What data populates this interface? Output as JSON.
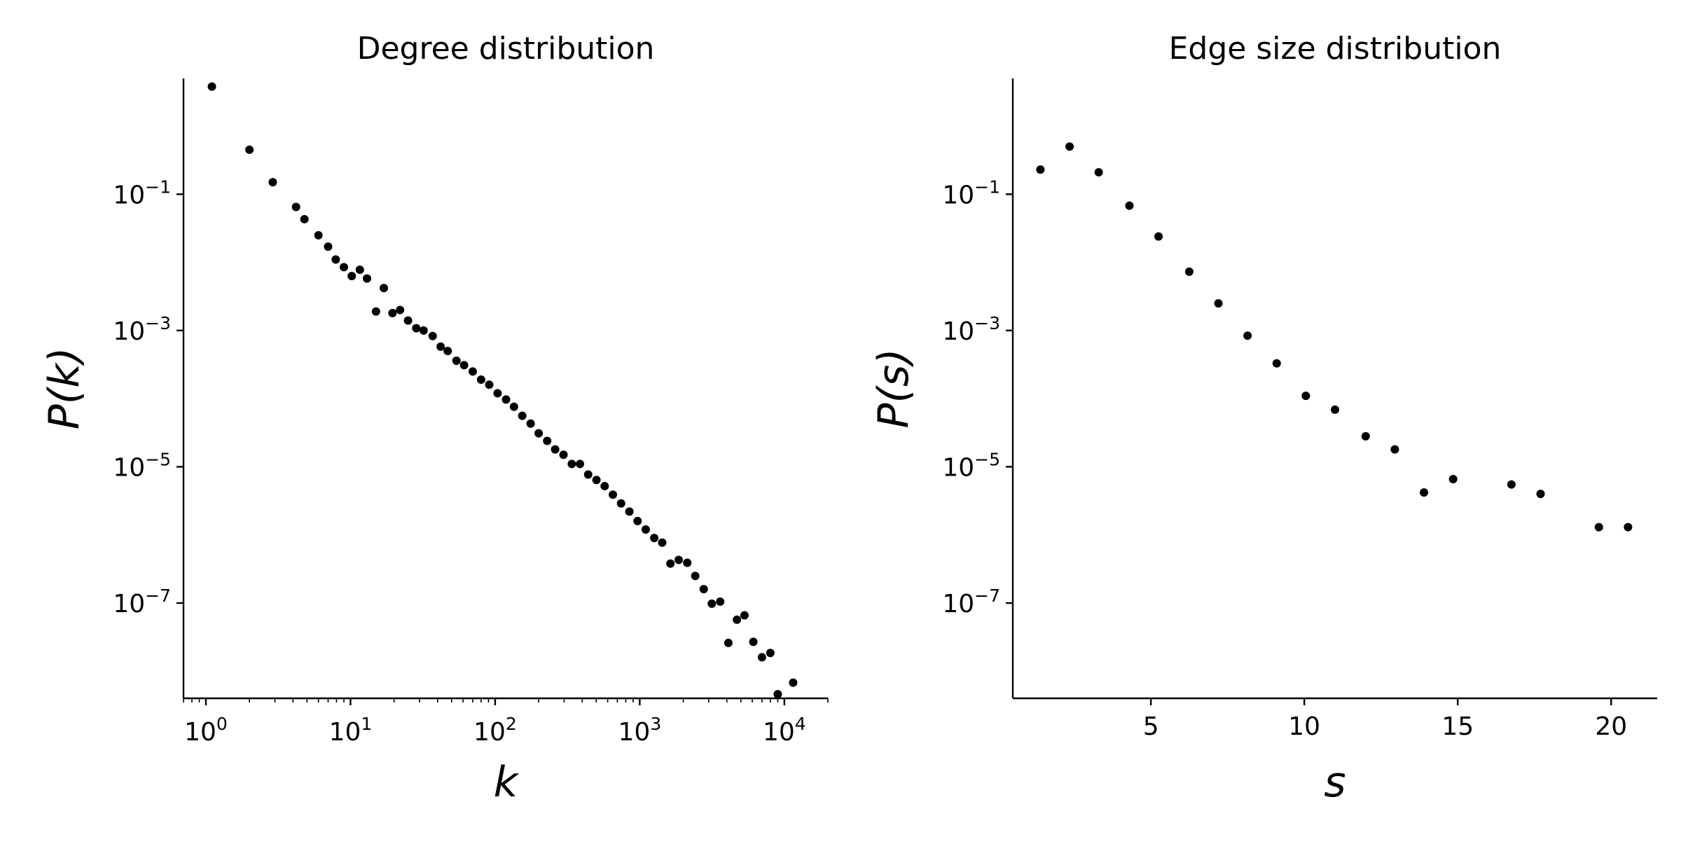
{
  "chart_data": [
    {
      "type": "scatter",
      "title": "Degree distribution",
      "xlabel": "k",
      "ylabel": "P(k)",
      "xscale": "log",
      "yscale": "log",
      "xlim": [
        0.7,
        20000
      ],
      "ylim": [
        4e-09,
        5
      ],
      "x_ticks": [
        {
          "base": "10",
          "exp": "0",
          "value": 1
        },
        {
          "base": "10",
          "exp": "1",
          "value": 10
        },
        {
          "base": "10",
          "exp": "2",
          "value": 100
        },
        {
          "base": "10",
          "exp": "3",
          "value": 1000
        },
        {
          "base": "10",
          "exp": "4",
          "value": 10000
        }
      ],
      "y_ticks": [
        {
          "base": "10",
          "exp": "−1",
          "value": 0.1
        },
        {
          "base": "10",
          "exp": "−3",
          "value": 0.001
        },
        {
          "base": "10",
          "exp": "−5",
          "value": 1e-05
        },
        {
          "base": "10",
          "exp": "−7",
          "value": 1e-07
        }
      ],
      "grid": false,
      "marker_color": "#000000",
      "series": [
        {
          "x": [
            1.1,
            2.0,
            2.9,
            4.2,
            4.8,
            6.0,
            7.0,
            7.9,
            9.0,
            10.2,
            11.6,
            13.0,
            15.0,
            17.0,
            19.5,
            22.0,
            25.0,
            28.5,
            32.0,
            37.0,
            42.0,
            47.0,
            54.0,
            61.0,
            70.0,
            80.0,
            91.0,
            104.0,
            119.0,
            135.0,
            154.0,
            176.0,
            200.0,
            229.0,
            260.0,
            297.0,
            339.0,
            386.0,
            440.0,
            502.0,
            572.0,
            652.0,
            743.0,
            848.0,
            966.0,
            1100.0,
            1260.0,
            1430.0,
            1630.0,
            1860.0,
            2130.0,
            2420.0,
            2770.0,
            3150.0,
            3600.0,
            4100.0,
            4700.0,
            5300.0,
            6100.0,
            7000.0,
            8000.0,
            9000.0,
            11500.0
          ],
          "y": [
            3.8,
            0.45,
            0.15,
            0.065,
            0.043,
            0.025,
            0.017,
            0.011,
            0.0085,
            0.0063,
            0.0078,
            0.0058,
            0.0019,
            0.0042,
            0.0018,
            0.002,
            0.0014,
            0.00108,
            0.001,
            0.00083,
            0.00058,
            0.0005,
            0.00036,
            0.00031,
            0.00025,
            0.00019,
            0.00016,
            0.00012,
            9.7e-05,
            7.6e-05,
            5.6e-05,
            4.3e-05,
            3.1e-05,
            2.4e-05,
            1.8e-05,
            1.5e-05,
            1.1e-05,
            1.1e-05,
            7.7e-06,
            6.4e-06,
            5.2e-06,
            3.9e-06,
            2.9e-06,
            2.2e-06,
            1.6e-06,
            1.2e-06,
            9e-07,
            7.7e-07,
            3.8e-07,
            4.3e-07,
            3.9e-07,
            2.5e-07,
            1.6e-07,
            9.8e-08,
            1.05e-07,
            2.6e-08,
            5.7e-08,
            6.6e-08,
            2.7e-08,
            1.6e-08,
            1.85e-08,
            4.6e-09,
            6.8e-09
          ]
        }
      ]
    },
    {
      "type": "scatter",
      "title": "Edge size distribution",
      "xlabel": "s",
      "ylabel": "P(s)",
      "xscale": "linear",
      "yscale": "log",
      "xlim": [
        0.5,
        21.5
      ],
      "ylim": [
        4e-09,
        5
      ],
      "x_ticks": [
        {
          "label": "5",
          "value": 5
        },
        {
          "label": "10",
          "value": 10
        },
        {
          "label": "15",
          "value": 15
        },
        {
          "label": "20",
          "value": 20
        }
      ],
      "y_ticks": [
        {
          "base": "10",
          "exp": "−1",
          "value": 0.1
        },
        {
          "base": "10",
          "exp": "−3",
          "value": 0.001
        },
        {
          "base": "10",
          "exp": "−5",
          "value": 1e-05
        },
        {
          "base": "10",
          "exp": "−7",
          "value": 1e-07
        }
      ],
      "grid": false,
      "marker_color": "#000000",
      "series": [
        {
          "x": [
            1.4,
            2.35,
            3.3,
            4.3,
            5.25,
            6.25,
            7.2,
            8.15,
            9.1,
            10.05,
            11.0,
            12.0,
            12.95,
            13.9,
            14.85,
            16.75,
            17.7,
            19.6,
            20.55
          ],
          "y": [
            0.23,
            0.5,
            0.21,
            0.068,
            0.024,
            0.0073,
            0.0025,
            0.00084,
            0.00033,
            0.00011,
            6.9e-05,
            2.8e-05,
            1.8e-05,
            4.2e-06,
            6.6e-06,
            5.5e-06,
            4e-06,
            1.3e-06,
            1.3e-06
          ]
        }
      ]
    }
  ]
}
